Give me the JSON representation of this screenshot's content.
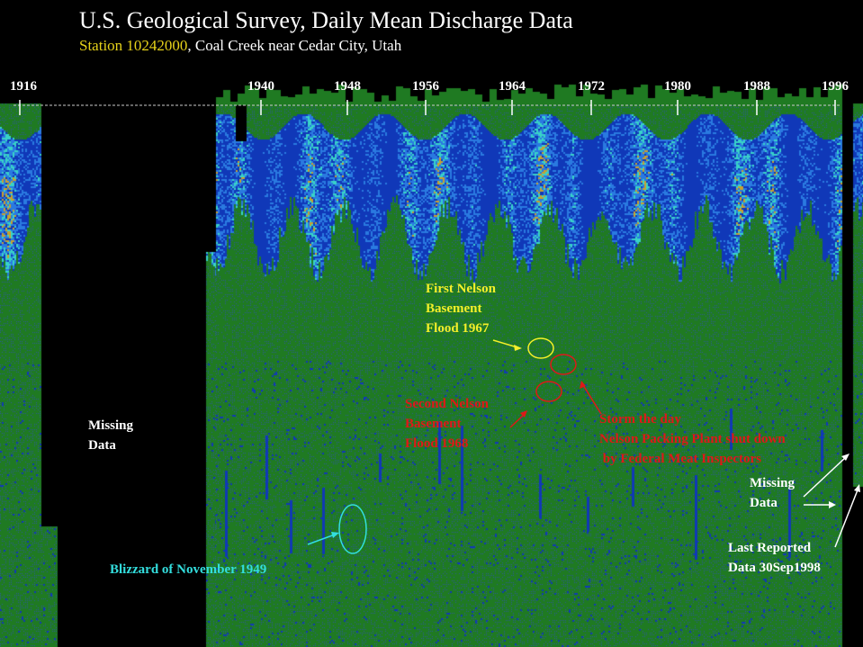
{
  "title": "U.S. Geological Survey, Daily Mean Discharge Data",
  "subtitle": {
    "station": "Station 10242000",
    "location": ", Coal Creek near Cedar City, Utah"
  },
  "chart_data": {
    "type": "heatmap",
    "title": "U.S. Geological Survey, Daily Mean Discharge Data",
    "subtitle": "Station 10242000, Coal Creek near Cedar City, Utah",
    "x_axis": {
      "ticks": [
        "1916",
        "1940",
        "1948",
        "1956",
        "1964",
        "1972",
        "1980",
        "1988",
        "1996"
      ],
      "range": [
        1915,
        1999
      ]
    },
    "grid": false,
    "record_ends": "30Sep1998",
    "colors": {
      "background": "#000000",
      "baseline": "#1f7a22",
      "baseline_dot": "#2c5a9c",
      "low": "#1038b8",
      "medium": "#2a7ae0",
      "high": "#38d2c8",
      "peak": "#c8a030",
      "missing": "#000000"
    },
    "annotations": [
      {
        "id": "missing-left",
        "text": "Missing\nData",
        "color": "#ffffff"
      },
      {
        "id": "first-flood",
        "text": "First Nelson\nBasement\nFlood 1967",
        "color": "#f4ef2a"
      },
      {
        "id": "second-flood",
        "text": "Second Nelson\nBasement\nFlood 1968",
        "color": "#e01818"
      },
      {
        "id": "storm",
        "text": "Storm the day\nNelson Packing Plant shut down\n by Federal Meat Inspectors",
        "color": "#e01818"
      },
      {
        "id": "missing-right",
        "text": "Missing\nData",
        "color": "#ffffff"
      },
      {
        "id": "last-reported",
        "text": "Last Reported\nData 30Sep1998",
        "color": "#ffffff"
      },
      {
        "id": "blizzard",
        "text": "Blizzard of November 1949",
        "color": "#33dede"
      }
    ]
  }
}
